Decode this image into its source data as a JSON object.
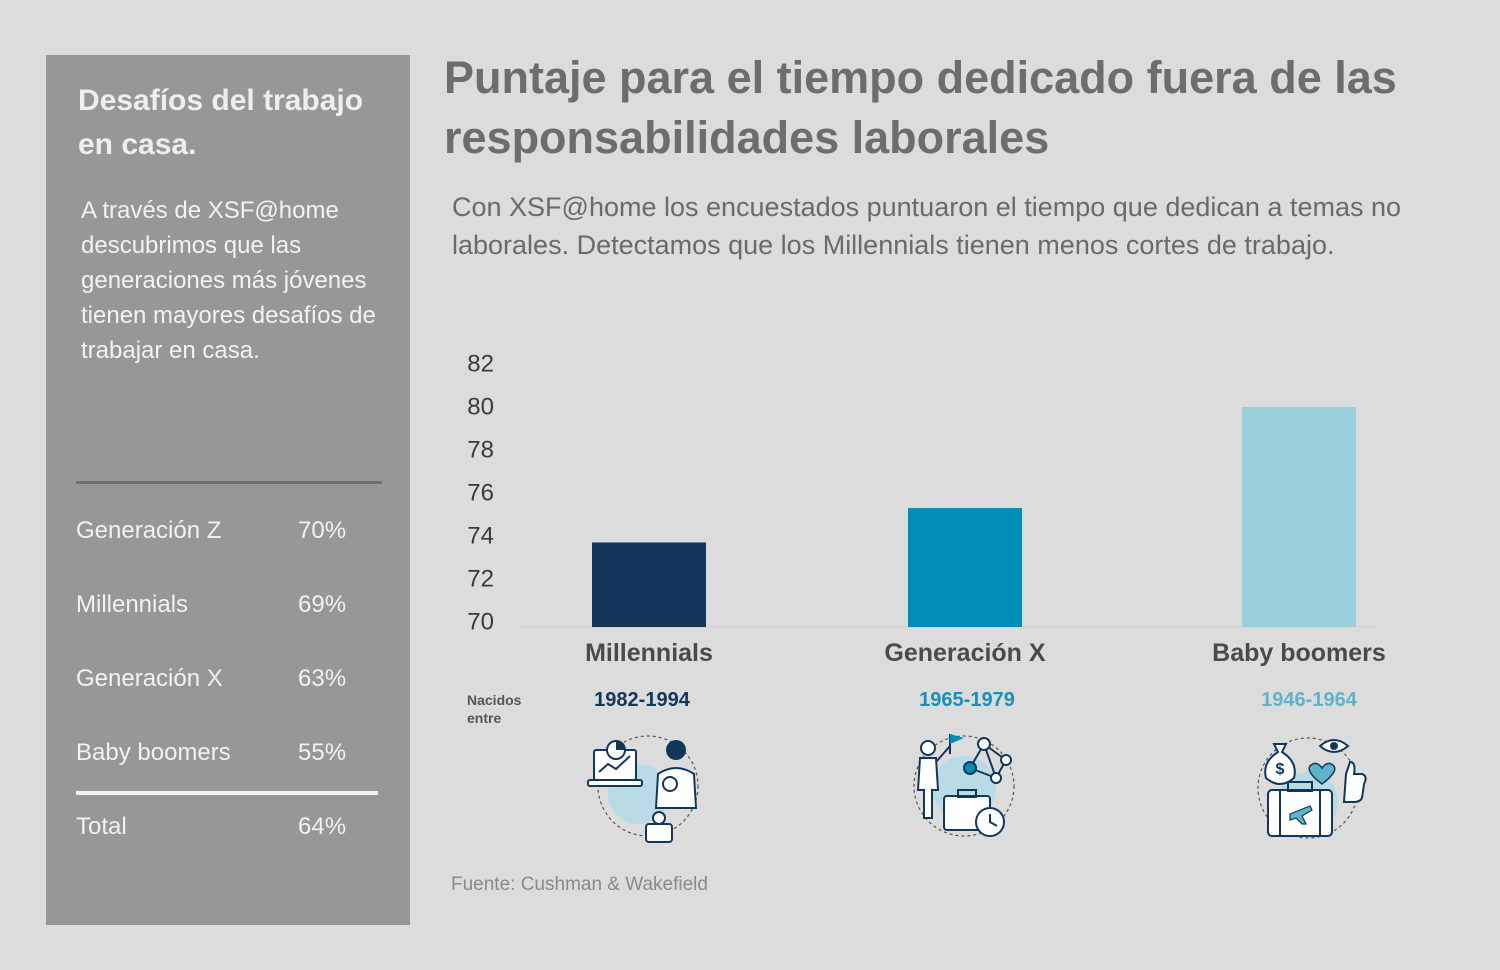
{
  "sidebar": {
    "title": "Desafíos del trabajo en casa.",
    "intro": "A través de XSF@home descubrimos que las generaciones más jóvenes tienen mayores desafíos de trabajar en casa.",
    "stats": [
      {
        "label": "Generación Z",
        "value": "70%"
      },
      {
        "label": "Millennials",
        "value": "69%"
      },
      {
        "label": "Generación X",
        "value": "63%"
      },
      {
        "label": "Baby boomers",
        "value": "55%"
      }
    ],
    "total": {
      "label": "Total",
      "value": "64%"
    }
  },
  "header": {
    "title": "Puntaje para el tiempo dedicado fuera de las responsabilidades laborales",
    "subtitle": "Con XSF@home los encuestados puntuaron el tiempo que dedican a temas no laborales. Detectamos que los Millennials tienen menos cortes de trabajo."
  },
  "born_label": "Nacidos entre",
  "generations": [
    {
      "years": "1982-1994",
      "icon": "parent-working-icon",
      "color": "#12375a"
    },
    {
      "years": "1965-1979",
      "icon": "business-network-icon",
      "color": "#008db6"
    },
    {
      "years": "1946-1964",
      "icon": "leisure-travel-icon",
      "color": "#9ad0dc"
    }
  ],
  "source": "Fuente: Cushman & Wakefield",
  "chart_data": {
    "type": "bar",
    "title": "Puntaje para el tiempo dedicado fuera de las responsabilidades laborales",
    "categories": [
      "Millennials",
      "Generación X",
      "Baby boomers"
    ],
    "values": [
      73.7,
      75.3,
      80.0
    ],
    "colors": [
      "#12375a",
      "#008db6",
      "#9ad0dc"
    ],
    "ylim": [
      70,
      82
    ],
    "yticks": [
      70,
      72,
      74,
      76,
      78,
      80,
      82
    ],
    "xlabel": "",
    "ylabel": "",
    "grid": false,
    "legend": "none"
  }
}
